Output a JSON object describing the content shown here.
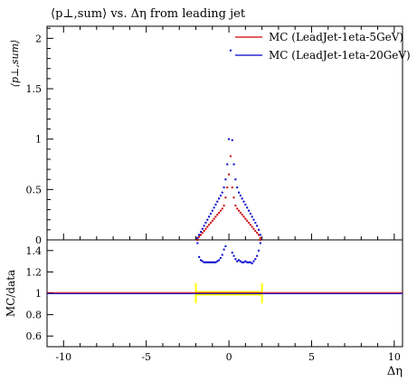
{
  "chart_data": [
    {
      "type": "scatter",
      "panel": "main",
      "title": "⟨p⊥,sum⟩ vs. Δη from leading jet",
      "ylabel": "⟨p⊥,sum⟩",
      "xlim": [
        -11,
        10.5
      ],
      "ylim": [
        0,
        2.12
      ],
      "y_ticks": [
        0,
        0.5,
        1,
        1.5,
        2
      ],
      "y_tick_labels": [
        "0",
        "0.5",
        "1",
        "1.5",
        "2"
      ],
      "legend": "top-right",
      "series": [
        {
          "name": "MC (LeadJet-1eta-5GeV)",
          "color": "#cc0000",
          "points": [
            [
              -1.9,
              0.01
            ],
            [
              -1.8,
              0.03
            ],
            [
              -1.7,
              0.05
            ],
            [
              -1.6,
              0.07
            ],
            [
              -1.5,
              0.09
            ],
            [
              -1.4,
              0.11
            ],
            [
              -1.3,
              0.13
            ],
            [
              -1.2,
              0.15
            ],
            [
              -1.1,
              0.17
            ],
            [
              -1.0,
              0.19
            ],
            [
              -0.9,
              0.21
            ],
            [
              -0.8,
              0.23
            ],
            [
              -0.7,
              0.25
            ],
            [
              -0.6,
              0.27
            ],
            [
              -0.5,
              0.29
            ],
            [
              -0.4,
              0.31
            ],
            [
              -0.3,
              0.34
            ],
            [
              -0.2,
              0.42
            ],
            [
              -0.1,
              0.52
            ],
            [
              0.0,
              0.65
            ],
            [
              0.1,
              0.83
            ],
            [
              0.2,
              0.52
            ],
            [
              0.3,
              0.42
            ],
            [
              0.4,
              0.34
            ],
            [
              0.5,
              0.31
            ],
            [
              0.6,
              0.29
            ],
            [
              0.7,
              0.27
            ],
            [
              0.8,
              0.25
            ],
            [
              0.9,
              0.23
            ],
            [
              1.0,
              0.21
            ],
            [
              1.1,
              0.19
            ],
            [
              1.2,
              0.17
            ],
            [
              1.3,
              0.15
            ],
            [
              1.4,
              0.13
            ],
            [
              1.5,
              0.11
            ],
            [
              1.6,
              0.09
            ],
            [
              1.7,
              0.07
            ],
            [
              1.8,
              0.05
            ],
            [
              1.9,
              0.02
            ]
          ]
        },
        {
          "name": "MC (LeadJet-1eta-20GeV)",
          "color": "#0000cc",
          "points": [
            [
              -1.9,
              0.02
            ],
            [
              -1.8,
              0.05
            ],
            [
              -1.7,
              0.08
            ],
            [
              -1.6,
              0.11
            ],
            [
              -1.5,
              0.14
            ],
            [
              -1.4,
              0.17
            ],
            [
              -1.3,
              0.2
            ],
            [
              -1.2,
              0.23
            ],
            [
              -1.1,
              0.26
            ],
            [
              -1.0,
              0.29
            ],
            [
              -0.9,
              0.32
            ],
            [
              -0.8,
              0.35
            ],
            [
              -0.7,
              0.38
            ],
            [
              -0.6,
              0.41
            ],
            [
              -0.5,
              0.44
            ],
            [
              -0.4,
              0.47
            ],
            [
              -0.3,
              0.52
            ],
            [
              -0.2,
              0.6
            ],
            [
              -0.1,
              0.75
            ],
            [
              0.0,
              1.0
            ],
            [
              0.1,
              1.88
            ],
            [
              0.2,
              0.99
            ],
            [
              0.3,
              0.75
            ],
            [
              0.4,
              0.6
            ],
            [
              0.5,
              0.52
            ],
            [
              0.6,
              0.47
            ],
            [
              0.7,
              0.44
            ],
            [
              0.8,
              0.41
            ],
            [
              0.9,
              0.38
            ],
            [
              1.0,
              0.35
            ],
            [
              1.1,
              0.32
            ],
            [
              1.2,
              0.29
            ],
            [
              1.3,
              0.26
            ],
            [
              1.4,
              0.23
            ],
            [
              1.5,
              0.2
            ],
            [
              1.6,
              0.17
            ],
            [
              1.7,
              0.14
            ],
            [
              1.8,
              0.1
            ],
            [
              1.9,
              0.05
            ]
          ]
        }
      ]
    },
    {
      "type": "scatter",
      "panel": "ratio",
      "ylabel": "MC/data",
      "xlabel": "Δη",
      "xlim": [
        -11,
        10.5
      ],
      "ylim": [
        0.5,
        1.5
      ],
      "x_ticks": [
        -10,
        -5,
        0,
        5,
        10
      ],
      "x_tick_labels": [
        "-10",
        "-5",
        "0",
        "5",
        "10"
      ],
      "y_ticks": [
        0.6,
        0.8,
        1,
        1.2,
        1.4
      ],
      "y_tick_labels": [
        "0.6",
        "0.8",
        "1",
        "1.2",
        "1.4"
      ],
      "reference_line": 1,
      "reference_band": {
        "color": "#ffff00",
        "x_range": [
          -2.0,
          2.0
        ],
        "y_range": [
          0.98,
          1.02
        ]
      },
      "series": [
        {
          "name": "MC (LeadJet-1eta-5GeV)",
          "color": "#cc0000",
          "points": [
            [
              -1.9,
              1.5
            ],
            [
              1.9,
              1.5
            ]
          ]
        },
        {
          "name": "MC (LeadJet-1eta-20GeV)",
          "color": "#0000cc",
          "points": [
            [
              -1.9,
              1.47
            ],
            [
              -1.8,
              1.34
            ],
            [
              -1.7,
              1.31
            ],
            [
              -1.6,
              1.3
            ],
            [
              -1.5,
              1.29
            ],
            [
              -1.4,
              1.29
            ],
            [
              -1.3,
              1.29
            ],
            [
              -1.2,
              1.29
            ],
            [
              -1.1,
              1.29
            ],
            [
              -1.0,
              1.29
            ],
            [
              -0.9,
              1.29
            ],
            [
              -0.8,
              1.29
            ],
            [
              -0.7,
              1.3
            ],
            [
              -0.6,
              1.31
            ],
            [
              -0.5,
              1.33
            ],
            [
              -0.4,
              1.36
            ],
            [
              -0.3,
              1.41
            ],
            [
              -0.2,
              1.44
            ],
            [
              0.2,
              1.38
            ],
            [
              0.3,
              1.35
            ],
            [
              0.4,
              1.32
            ],
            [
              0.5,
              1.3
            ],
            [
              0.6,
              1.31
            ],
            [
              0.7,
              1.3
            ],
            [
              0.8,
              1.29
            ],
            [
              0.9,
              1.29
            ],
            [
              1.0,
              1.3
            ],
            [
              1.1,
              1.29
            ],
            [
              1.2,
              1.29
            ],
            [
              1.3,
              1.29
            ],
            [
              1.4,
              1.28
            ],
            [
              1.5,
              1.3
            ],
            [
              1.6,
              1.32
            ],
            [
              1.7,
              1.35
            ],
            [
              1.8,
              1.4
            ],
            [
              1.9,
              1.47
            ]
          ]
        }
      ]
    }
  ]
}
